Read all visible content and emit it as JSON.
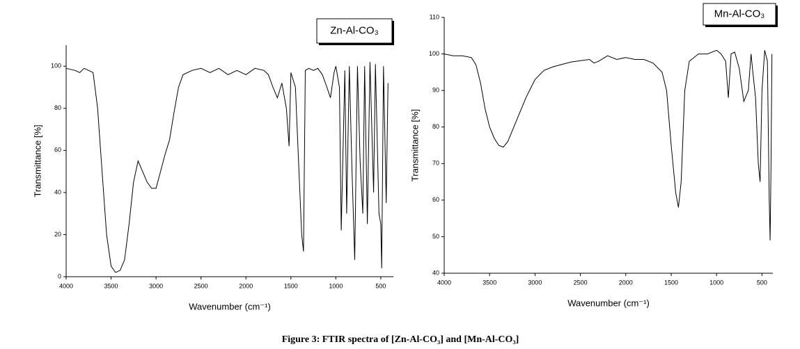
{
  "chart_data": [
    {
      "type": "line",
      "title": "Zn-Al-CO₃",
      "xlabel": "Wavenumber (cm⁻¹)",
      "ylabel": "Transmittance [%]",
      "xlim": [
        4000,
        360
      ],
      "ylim": [
        0,
        110
      ],
      "xticks": [
        4000,
        3500,
        3000,
        2500,
        2000,
        1500,
        1000,
        500
      ],
      "yticks": [
        0,
        20,
        40,
        60,
        80,
        100
      ],
      "series": [
        {
          "color": "#000000",
          "x": [
            4000,
            3900,
            3850,
            3800,
            3750,
            3700,
            3650,
            3600,
            3550,
            3500,
            3450,
            3400,
            3350,
            3300,
            3250,
            3200,
            3150,
            3100,
            3050,
            3000,
            2950,
            2900,
            2850,
            2800,
            2750,
            2700,
            2600,
            2500,
            2400,
            2300,
            2200,
            2100,
            2000,
            1900,
            1800,
            1750,
            1700,
            1650,
            1600,
            1550,
            1520,
            1500,
            1450,
            1400,
            1380,
            1360,
            1340,
            1300,
            1250,
            1200,
            1150,
            1100,
            1060,
            1020,
            1000,
            960,
            940,
            920,
            900,
            880,
            850,
            820,
            790,
            760,
            730,
            700,
            680,
            650,
            620,
            580,
            560,
            520,
            500,
            490,
            470,
            440,
            420
          ],
          "values": [
            99,
            98,
            97,
            99,
            98,
            97,
            80,
            50,
            20,
            5,
            2,
            3,
            8,
            25,
            45,
            55,
            50,
            45,
            42,
            42,
            50,
            58,
            65,
            78,
            90,
            96,
            98,
            99,
            97,
            99,
            96,
            98,
            96,
            99,
            98,
            96,
            90,
            85,
            92,
            80,
            62,
            97,
            90,
            40,
            20,
            12,
            98,
            99,
            98,
            99,
            96,
            90,
            85,
            97,
            100,
            90,
            22,
            60,
            98,
            30,
            100,
            50,
            8,
            100,
            55,
            30,
            100,
            25,
            102,
            40,
            101,
            30,
            25,
            4,
            100,
            35,
            92
          ]
        }
      ]
    },
    {
      "type": "line",
      "title": "Mn-Al-CO₃",
      "xlabel": "Wavenumber (cm⁻¹)",
      "ylabel": "Transmittance [%]",
      "xlim": [
        4000,
        380
      ],
      "ylim": [
        40,
        110
      ],
      "xticks": [
        4000,
        3500,
        3000,
        2500,
        2000,
        1500,
        1000,
        500
      ],
      "yticks": [
        40,
        50,
        60,
        70,
        80,
        90,
        100,
        110
      ],
      "series": [
        {
          "color": "#000000",
          "x": [
            4000,
            3900,
            3800,
            3700,
            3650,
            3600,
            3550,
            3500,
            3450,
            3400,
            3350,
            3300,
            3200,
            3100,
            3000,
            2900,
            2800,
            2600,
            2400,
            2350,
            2300,
            2200,
            2100,
            2000,
            1900,
            1800,
            1700,
            1600,
            1550,
            1500,
            1450,
            1420,
            1390,
            1350,
            1300,
            1200,
            1100,
            1000,
            950,
            900,
            870,
            840,
            800,
            750,
            700,
            650,
            620,
            600,
            570,
            540,
            520,
            500,
            470,
            440,
            420,
            410,
            400,
            390
          ],
          "values": [
            100,
            99.5,
            99.5,
            99,
            97,
            92,
            85,
            80,
            77,
            75,
            74.5,
            76,
            82,
            88,
            93,
            95.5,
            96.5,
            97.8,
            98.5,
            97.5,
            98,
            99.5,
            98.5,
            99,
            98.5,
            98.5,
            97.5,
            95,
            90,
            75,
            62,
            58,
            65,
            90,
            98,
            100,
            100,
            101,
            100,
            98,
            88,
            100,
            100.5,
            96,
            87,
            90,
            100,
            95,
            88,
            70,
            65,
            90,
            101,
            98,
            60,
            49,
            70,
            100
          ]
        }
      ]
    }
  ],
  "caption": "Figure 3: FTIR spectra of [Zn-Al-CO₃] and [Mn-Al-CO₃]"
}
